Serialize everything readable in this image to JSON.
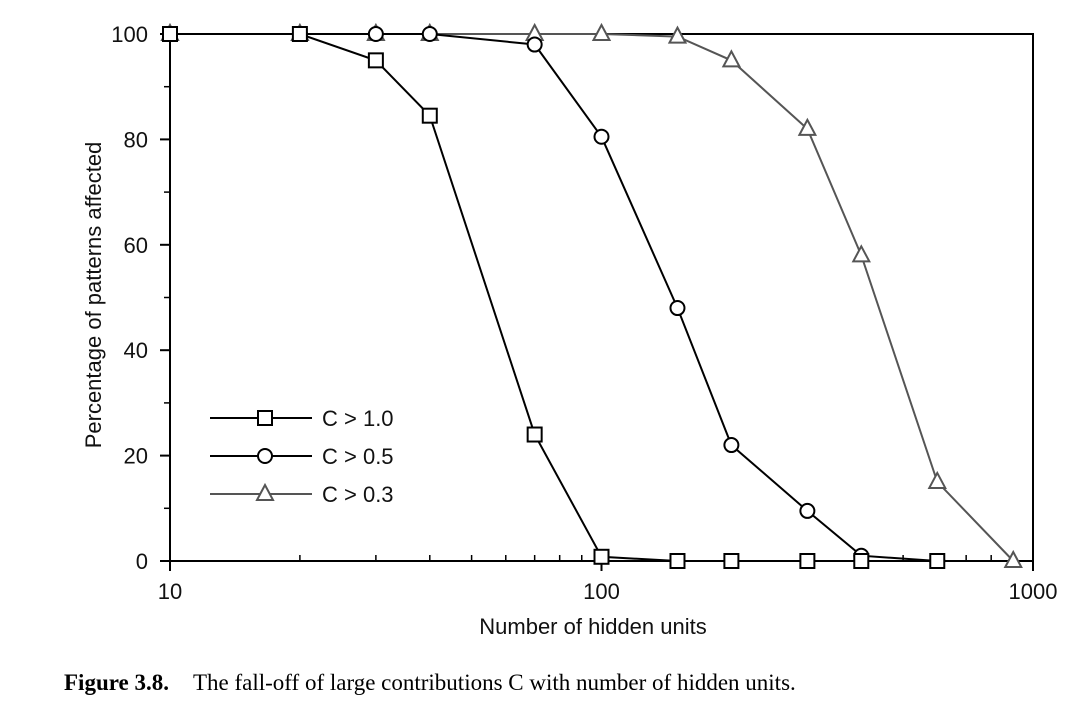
{
  "chart_data": {
    "type": "line",
    "xlabel": "Number of hidden units",
    "ylabel": "Percentage of patterns affected",
    "x_scale": "log",
    "xlim": [
      10,
      1000
    ],
    "ylim": [
      0,
      100
    ],
    "x_ticks": [
      "10",
      "100",
      "1000"
    ],
    "y_ticks": [
      "0",
      "20",
      "40",
      "60",
      "80",
      "100"
    ],
    "grid": false,
    "legend_position": "lower-left",
    "series": [
      {
        "name": "C > 1.0",
        "marker": "square",
        "color": "#000000",
        "x": [
          10,
          20,
          30,
          40,
          70,
          100,
          150,
          200,
          300,
          400,
          600
        ],
        "y": [
          100,
          100,
          95,
          84.5,
          24,
          0.8,
          0,
          0,
          0,
          0,
          0
        ]
      },
      {
        "name": "C > 0.5",
        "marker": "circle",
        "color": "#000000",
        "x": [
          10,
          20,
          30,
          40,
          70,
          100,
          150,
          200,
          300,
          400,
          600
        ],
        "y": [
          100,
          100,
          100,
          100,
          98,
          80.5,
          48,
          22,
          9.5,
          1,
          0
        ]
      },
      {
        "name": "C > 0.3",
        "marker": "triangle",
        "color": "#555555",
        "x": [
          10,
          20,
          30,
          40,
          70,
          100,
          150,
          200,
          300,
          400,
          600,
          900
        ],
        "y": [
          100,
          100,
          100,
          100,
          100,
          100,
          99.5,
          95,
          82,
          58,
          15,
          0
        ]
      }
    ]
  },
  "caption": {
    "label": "Figure 3.8.",
    "text": "The fall-off of large contributions C with number of hidden units."
  }
}
